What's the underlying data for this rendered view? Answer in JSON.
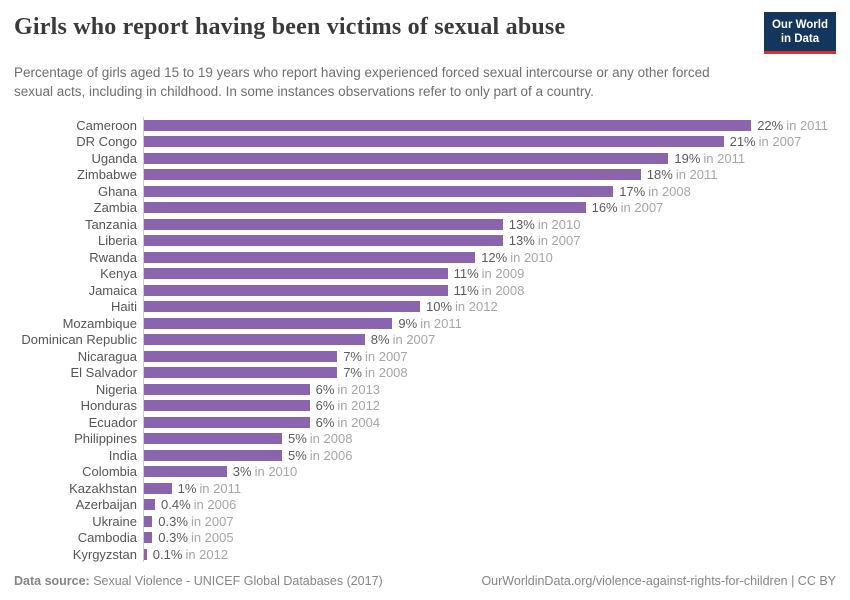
{
  "logo": {
    "line1": "Our World",
    "line2": "in Data",
    "bg_color": "#14355c",
    "stripe_color": "#d7332e"
  },
  "chart_data": {
    "type": "bar",
    "orientation": "horizontal",
    "title": "Girls who report having been victims of sexual abuse",
    "subtitle": "Percentage of girls aged 15 to 19 years who report having experienced forced sexual intercourse or any other forced sexual acts, including in childhood. In some instances observations refer to only part of a country.",
    "unit": "%",
    "xlim": [
      0,
      22
    ],
    "grid": false,
    "legend": "none",
    "bar_color": "#8a65ad",
    "rows": [
      {
        "country": "Cameroon",
        "value": 22,
        "year": 2011,
        "value_label": "22%",
        "year_label": "in 2011"
      },
      {
        "country": "DR Congo",
        "value": 21,
        "year": 2007,
        "value_label": "21%",
        "year_label": "in 2007"
      },
      {
        "country": "Uganda",
        "value": 19,
        "year": 2011,
        "value_label": "19%",
        "year_label": "in 2011"
      },
      {
        "country": "Zimbabwe",
        "value": 18,
        "year": 2011,
        "value_label": "18%",
        "year_label": "in 2011"
      },
      {
        "country": "Ghana",
        "value": 17,
        "year": 2008,
        "value_label": "17%",
        "year_label": "in 2008"
      },
      {
        "country": "Zambia",
        "value": 16,
        "year": 2007,
        "value_label": "16%",
        "year_label": "in 2007"
      },
      {
        "country": "Tanzania",
        "value": 13,
        "year": 2010,
        "value_label": "13%",
        "year_label": "in 2010"
      },
      {
        "country": "Liberia",
        "value": 13,
        "year": 2007,
        "value_label": "13%",
        "year_label": "in 2007"
      },
      {
        "country": "Rwanda",
        "value": 12,
        "year": 2010,
        "value_label": "12%",
        "year_label": "in 2010"
      },
      {
        "country": "Kenya",
        "value": 11,
        "year": 2009,
        "value_label": "11%",
        "year_label": "in 2009"
      },
      {
        "country": "Jamaica",
        "value": 11,
        "year": 2008,
        "value_label": "11%",
        "year_label": "in 2008"
      },
      {
        "country": "Haiti",
        "value": 10,
        "year": 2012,
        "value_label": "10%",
        "year_label": "in 2012"
      },
      {
        "country": "Mozambique",
        "value": 9,
        "year": 2011,
        "value_label": "9%",
        "year_label": "in 2011"
      },
      {
        "country": "Dominican Republic",
        "value": 8,
        "year": 2007,
        "value_label": "8%",
        "year_label": "in 2007"
      },
      {
        "country": "Nicaragua",
        "value": 7,
        "year": 2007,
        "value_label": "7%",
        "year_label": "in 2007"
      },
      {
        "country": "El Salvador",
        "value": 7,
        "year": 2008,
        "value_label": "7%",
        "year_label": "in 2008"
      },
      {
        "country": "Nigeria",
        "value": 6,
        "year": 2013,
        "value_label": "6%",
        "year_label": "in 2013"
      },
      {
        "country": "Honduras",
        "value": 6,
        "year": 2012,
        "value_label": "6%",
        "year_label": "in 2012"
      },
      {
        "country": "Ecuador",
        "value": 6,
        "year": 2004,
        "value_label": "6%",
        "year_label": "in 2004"
      },
      {
        "country": "Philippines",
        "value": 5,
        "year": 2008,
        "value_label": "5%",
        "year_label": "in 2008"
      },
      {
        "country": "India",
        "value": 5,
        "year": 2006,
        "value_label": "5%",
        "year_label": "in 2006"
      },
      {
        "country": "Colombia",
        "value": 3,
        "year": 2010,
        "value_label": "3%",
        "year_label": "in 2010"
      },
      {
        "country": "Kazakhstan",
        "value": 1,
        "year": 2011,
        "value_label": "1%",
        "year_label": "in 2011"
      },
      {
        "country": "Azerbaijan",
        "value": 0.4,
        "year": 2006,
        "value_label": "0.4%",
        "year_label": "in 2006"
      },
      {
        "country": "Ukraine",
        "value": 0.3,
        "year": 2007,
        "value_label": "0.3%",
        "year_label": "in 2007"
      },
      {
        "country": "Cambodia",
        "value": 0.3,
        "year": 2005,
        "value_label": "0.3%",
        "year_label": "in 2005"
      },
      {
        "country": "Kyrgyzstan",
        "value": 0.1,
        "year": 2012,
        "value_label": "0.1%",
        "year_label": "in 2012"
      }
    ]
  },
  "footer": {
    "source_label": "Data source:",
    "source_text": " Sexual Violence - UNICEF Global Databases (2017)",
    "right_text": "OurWorldinData.org/violence-against-rights-for-children | CC BY"
  }
}
